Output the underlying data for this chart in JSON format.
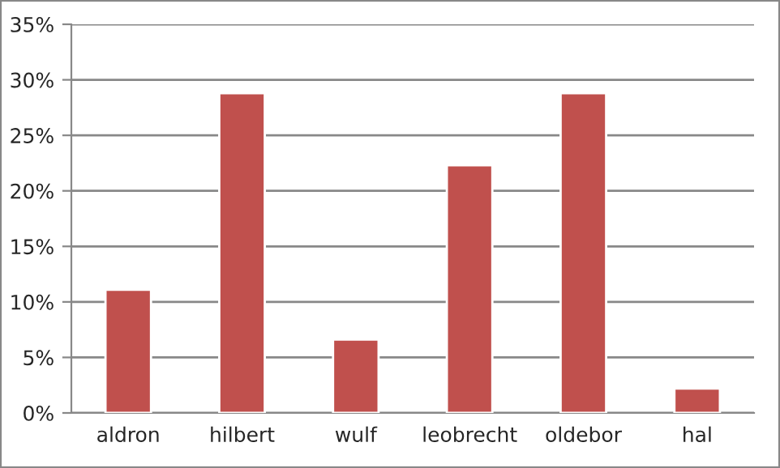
{
  "chart_data": {
    "type": "bar",
    "categories": [
      "aldron",
      "hilbert",
      "wulf",
      "leobrecht",
      "oldebor",
      "hal"
    ],
    "values": [
      11.1,
      28.8,
      6.6,
      22.3,
      28.8,
      2.2
    ],
    "color": "#c0504d",
    "ylim": [
      0,
      35
    ],
    "yticks": [
      {
        "value": 0,
        "label": "0%"
      },
      {
        "value": 5,
        "label": "5%"
      },
      {
        "value": 10,
        "label": "10%"
      },
      {
        "value": 15,
        "label": "15%"
      },
      {
        "value": 20,
        "label": "20%"
      },
      {
        "value": 25,
        "label": "25%"
      },
      {
        "value": 30,
        "label": "30%"
      },
      {
        "value": 35,
        "label": "35%"
      }
    ],
    "grid": "y"
  }
}
